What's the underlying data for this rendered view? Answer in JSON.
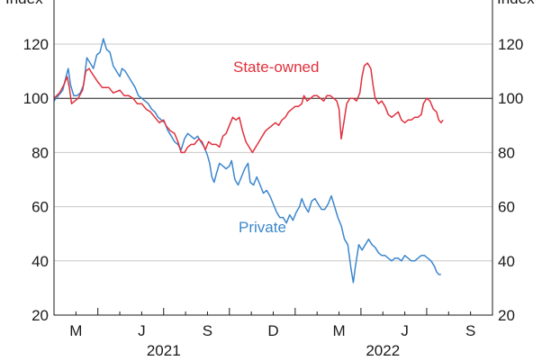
{
  "chart_data": {
    "type": "line",
    "unit_label": "Index",
    "ylim": [
      20,
      130
    ],
    "yticks": [
      20,
      40,
      60,
      80,
      100,
      120
    ],
    "reference_line": 100,
    "x_months": [
      {
        "label": "M",
        "t": 1.0
      },
      {
        "label": "J",
        "t": 4.0
      },
      {
        "label": "S",
        "t": 7.0
      },
      {
        "label": "D",
        "t": 10.0
      },
      {
        "label": "M",
        "t": 13.0
      },
      {
        "label": "J",
        "t": 16.0
      },
      {
        "label": "S",
        "t": 19.0
      }
    ],
    "x_years": [
      {
        "label": "2021",
        "t": 5.0
      },
      {
        "label": "2022",
        "t": 15.0
      }
    ],
    "xlim": [
      0,
      20
    ],
    "grid": true,
    "series": [
      {
        "name": "State-owned",
        "color": "#e0313d",
        "points": [
          [
            0.0,
            100
          ],
          [
            0.25,
            102
          ],
          [
            0.45,
            105
          ],
          [
            0.6,
            108
          ],
          [
            0.7,
            104
          ],
          [
            0.8,
            98
          ],
          [
            0.95,
            99
          ],
          [
            1.1,
            100
          ],
          [
            1.3,
            103
          ],
          [
            1.45,
            110
          ],
          [
            1.6,
            111
          ],
          [
            1.75,
            109
          ],
          [
            2.0,
            106
          ],
          [
            2.2,
            104
          ],
          [
            2.5,
            104
          ],
          [
            2.7,
            102
          ],
          [
            3.0,
            103
          ],
          [
            3.2,
            101
          ],
          [
            3.4,
            101
          ],
          [
            3.6,
            100
          ],
          [
            3.8,
            98
          ],
          [
            4.0,
            98
          ],
          [
            4.2,
            96
          ],
          [
            4.4,
            95
          ],
          [
            4.6,
            93
          ],
          [
            4.8,
            91
          ],
          [
            5.0,
            92
          ],
          [
            5.1,
            90
          ],
          [
            5.3,
            88
          ],
          [
            5.5,
            87
          ],
          [
            5.65,
            84
          ],
          [
            5.8,
            80
          ],
          [
            5.95,
            80
          ],
          [
            6.1,
            82
          ],
          [
            6.25,
            83
          ],
          [
            6.4,
            83
          ],
          [
            6.6,
            85
          ],
          [
            6.75,
            84
          ],
          [
            6.9,
            81
          ],
          [
            7.05,
            84
          ],
          [
            7.2,
            83
          ],
          [
            7.4,
            83
          ],
          [
            7.55,
            82
          ],
          [
            7.7,
            86
          ],
          [
            7.85,
            87
          ],
          [
            8.0,
            90
          ],
          [
            8.15,
            93
          ],
          [
            8.3,
            92
          ],
          [
            8.45,
            93
          ],
          [
            8.6,
            88
          ],
          [
            8.75,
            84
          ],
          [
            8.9,
            82
          ],
          [
            9.05,
            80
          ],
          [
            9.2,
            82
          ],
          [
            9.35,
            84
          ],
          [
            9.5,
            86
          ],
          [
            9.65,
            88
          ],
          [
            9.8,
            89
          ],
          [
            9.95,
            90
          ],
          [
            10.1,
            91
          ],
          [
            10.25,
            90
          ],
          [
            10.4,
            92
          ],
          [
            10.55,
            93
          ],
          [
            10.7,
            95
          ],
          [
            10.85,
            96
          ],
          [
            11.0,
            97
          ],
          [
            11.15,
            97
          ],
          [
            11.3,
            98
          ],
          [
            11.4,
            101
          ],
          [
            11.55,
            99
          ],
          [
            11.7,
            100
          ],
          [
            11.85,
            101
          ],
          [
            12.0,
            101
          ],
          [
            12.15,
            100
          ],
          [
            12.3,
            99
          ],
          [
            12.45,
            101
          ],
          [
            12.6,
            101
          ],
          [
            12.75,
            100
          ],
          [
            12.9,
            99
          ],
          [
            13.0,
            96
          ],
          [
            13.1,
            85
          ],
          [
            13.2,
            90
          ],
          [
            13.35,
            98
          ],
          [
            13.5,
            100
          ],
          [
            13.65,
            100
          ],
          [
            13.8,
            99
          ],
          [
            13.95,
            102
          ],
          [
            14.05,
            108
          ],
          [
            14.15,
            112
          ],
          [
            14.3,
            113
          ],
          [
            14.45,
            111
          ],
          [
            14.55,
            105
          ],
          [
            14.65,
            100
          ],
          [
            14.8,
            98
          ],
          [
            14.95,
            99
          ],
          [
            15.1,
            97
          ],
          [
            15.25,
            94
          ],
          [
            15.4,
            93
          ],
          [
            15.55,
            94
          ],
          [
            15.7,
            95
          ],
          [
            15.85,
            92
          ],
          [
            16.0,
            91
          ],
          [
            16.15,
            92
          ],
          [
            16.3,
            92
          ],
          [
            16.45,
            93
          ],
          [
            16.6,
            93
          ],
          [
            16.75,
            94
          ],
          [
            16.85,
            98
          ],
          [
            17.0,
            100
          ],
          [
            17.15,
            99
          ],
          [
            17.3,
            96
          ],
          [
            17.45,
            95
          ],
          [
            17.55,
            92
          ],
          [
            17.65,
            91
          ],
          [
            17.75,
            92
          ]
        ]
      },
      {
        "name": "Private",
        "color": "#3c87cd",
        "points": [
          [
            0.0,
            99
          ],
          [
            0.2,
            101
          ],
          [
            0.4,
            103
          ],
          [
            0.55,
            108
          ],
          [
            0.65,
            111
          ],
          [
            0.75,
            105
          ],
          [
            0.9,
            101
          ],
          [
            1.05,
            101
          ],
          [
            1.2,
            102
          ],
          [
            1.35,
            105
          ],
          [
            1.5,
            115
          ],
          [
            1.65,
            113
          ],
          [
            1.8,
            111
          ],
          [
            1.95,
            116
          ],
          [
            2.1,
            117
          ],
          [
            2.25,
            122
          ],
          [
            2.4,
            118
          ],
          [
            2.55,
            117
          ],
          [
            2.7,
            112
          ],
          [
            2.85,
            110
          ],
          [
            3.0,
            108
          ],
          [
            3.1,
            111
          ],
          [
            3.25,
            110
          ],
          [
            3.4,
            108
          ],
          [
            3.55,
            106
          ],
          [
            3.7,
            104
          ],
          [
            3.85,
            101
          ],
          [
            4.0,
            100
          ],
          [
            4.15,
            99
          ],
          [
            4.3,
            98
          ],
          [
            4.45,
            96
          ],
          [
            4.6,
            95
          ],
          [
            4.75,
            93
          ],
          [
            4.9,
            92
          ],
          [
            5.05,
            91
          ],
          [
            5.2,
            88
          ],
          [
            5.35,
            86
          ],
          [
            5.5,
            84
          ],
          [
            5.65,
            83
          ],
          [
            5.8,
            81
          ],
          [
            5.95,
            85
          ],
          [
            6.1,
            87
          ],
          [
            6.25,
            86
          ],
          [
            6.4,
            85
          ],
          [
            6.55,
            86
          ],
          [
            6.7,
            84
          ],
          [
            6.85,
            82
          ],
          [
            7.0,
            79
          ],
          [
            7.1,
            76
          ],
          [
            7.2,
            71
          ],
          [
            7.3,
            69
          ],
          [
            7.4,
            72
          ],
          [
            7.55,
            76
          ],
          [
            7.7,
            75
          ],
          [
            7.85,
            74
          ],
          [
            8.0,
            75
          ],
          [
            8.1,
            77
          ],
          [
            8.25,
            70
          ],
          [
            8.4,
            68
          ],
          [
            8.55,
            71
          ],
          [
            8.7,
            74
          ],
          [
            8.85,
            76
          ],
          [
            8.95,
            69
          ],
          [
            9.1,
            68
          ],
          [
            9.25,
            71
          ],
          [
            9.4,
            68
          ],
          [
            9.55,
            65
          ],
          [
            9.7,
            66
          ],
          [
            9.85,
            64
          ],
          [
            10.0,
            61
          ],
          [
            10.15,
            58
          ],
          [
            10.3,
            56
          ],
          [
            10.45,
            56
          ],
          [
            10.6,
            54
          ],
          [
            10.75,
            57
          ],
          [
            10.9,
            55
          ],
          [
            11.05,
            58
          ],
          [
            11.2,
            60
          ],
          [
            11.3,
            63
          ],
          [
            11.45,
            60
          ],
          [
            11.6,
            58
          ],
          [
            11.75,
            62
          ],
          [
            11.9,
            63
          ],
          [
            12.05,
            61
          ],
          [
            12.2,
            59
          ],
          [
            12.35,
            59
          ],
          [
            12.5,
            61
          ],
          [
            12.65,
            64
          ],
          [
            12.8,
            60
          ],
          [
            12.95,
            56
          ],
          [
            13.1,
            53
          ],
          [
            13.25,
            48
          ],
          [
            13.4,
            46
          ],
          [
            13.55,
            37
          ],
          [
            13.65,
            32
          ],
          [
            13.75,
            38
          ],
          [
            13.9,
            46
          ],
          [
            14.05,
            44
          ],
          [
            14.2,
            46
          ],
          [
            14.35,
            48
          ],
          [
            14.5,
            46
          ],
          [
            14.65,
            45
          ],
          [
            14.8,
            43
          ],
          [
            14.95,
            42
          ],
          [
            15.1,
            42
          ],
          [
            15.25,
            41
          ],
          [
            15.4,
            40
          ],
          [
            15.55,
            41
          ],
          [
            15.7,
            41
          ],
          [
            15.85,
            40
          ],
          [
            16.0,
            42
          ],
          [
            16.15,
            41
          ],
          [
            16.3,
            40
          ],
          [
            16.45,
            40
          ],
          [
            16.6,
            41
          ],
          [
            16.75,
            42
          ],
          [
            16.9,
            42
          ],
          [
            17.05,
            41
          ],
          [
            17.2,
            40
          ],
          [
            17.35,
            38
          ],
          [
            17.45,
            36
          ],
          [
            17.55,
            35
          ],
          [
            17.65,
            35
          ]
        ]
      }
    ],
    "annotations": [
      {
        "text": "State-owned",
        "series": "State-owned"
      },
      {
        "text": "Private",
        "series": "Private"
      }
    ]
  }
}
